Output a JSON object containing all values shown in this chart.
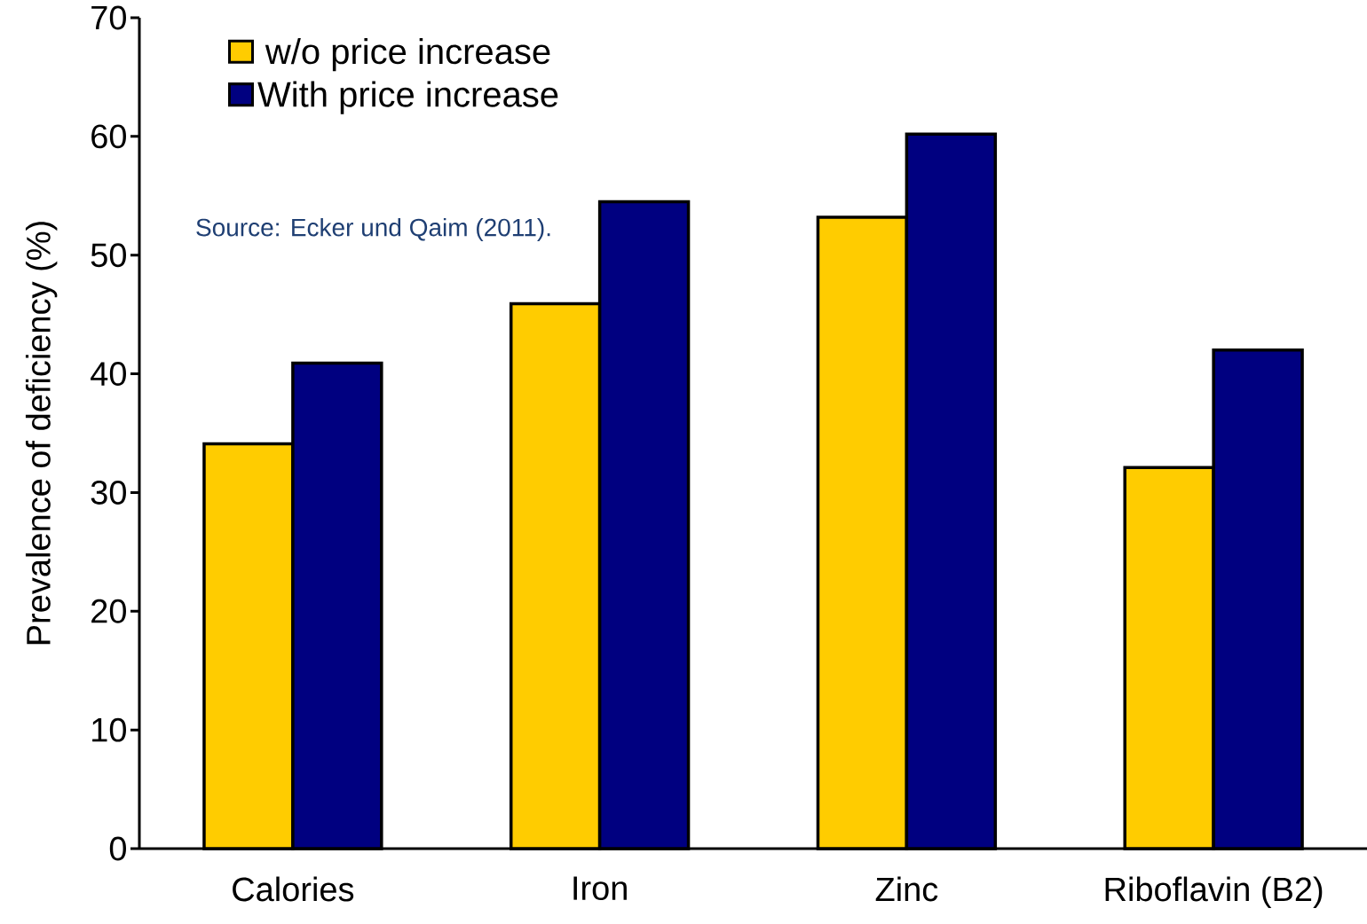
{
  "chart_data": {
    "type": "bar",
    "ylabel": "Prevalence of deficiency (%)",
    "categories": [
      "Calories",
      "Iron",
      "Zinc",
      "Riboflavin (B2)"
    ],
    "series": [
      {
        "name": "w/o price increase",
        "color": "#ffcc00",
        "values": [
          34.1,
          45.9,
          53.2,
          32.1
        ]
      },
      {
        "name": "With price increase",
        "color": "#000080",
        "values": [
          40.9,
          54.5,
          60.2,
          42.0
        ]
      }
    ],
    "ylim": [
      0,
      70
    ],
    "yticks": [
      0,
      10,
      20,
      30,
      40,
      50,
      60,
      70
    ],
    "legend": "top left",
    "grid": false,
    "annotations": [
      "Source: Ecker und Qaim (2011)."
    ]
  }
}
